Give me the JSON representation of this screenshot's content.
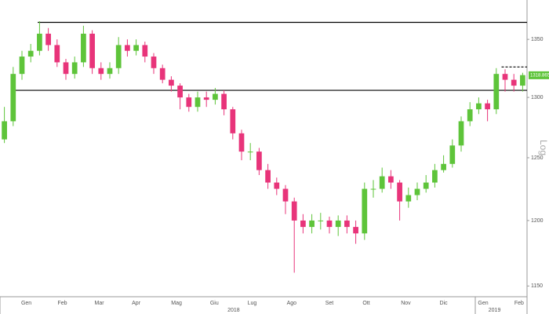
{
  "chart_data": {
    "type": "candlestick",
    "log_scale": true,
    "scale_label": "Log",
    "xlim": [
      0,
      60
    ],
    "ylim": [
      1142,
      1385
    ],
    "yticks": [
      1150,
      1200,
      1250,
      1300,
      1350
    ],
    "xticks": [
      {
        "value": 3.0,
        "label": "Gen"
      },
      {
        "value": 7.1,
        "label": "Feb"
      },
      {
        "value": 11.3,
        "label": "Mar"
      },
      {
        "value": 15.5,
        "label": "Apr"
      },
      {
        "value": 20.1,
        "label": "Mag"
      },
      {
        "value": 24.4,
        "label": "Giu"
      },
      {
        "value": 28.7,
        "label": "Lug"
      },
      {
        "value": 33.2,
        "label": "Ago"
      },
      {
        "value": 37.5,
        "label": "Set"
      },
      {
        "value": 41.7,
        "label": "Ott"
      },
      {
        "value": 46.2,
        "label": "Nov"
      },
      {
        "value": 50.5,
        "label": "Dic"
      },
      {
        "value": 55.0,
        "label": "Gen"
      },
      {
        "value": 59.1,
        "label": "Feb"
      }
    ],
    "year_labels": [
      {
        "value": 26.6,
        "label": "2018"
      },
      {
        "value": 56.3,
        "label": "2019"
      }
    ],
    "up_color": "#5ec43a",
    "down_color": "#e8347a",
    "last_price": 1318.8654,
    "hlines": [
      {
        "value": 1365,
        "x_from": 4.3,
        "dashed": false
      },
      {
        "value": 1306,
        "x_from": 1.3,
        "dashed": false
      },
      {
        "value": 1326,
        "x_from": 57.1,
        "dashed": true
      }
    ],
    "x": [
      0.5,
      1.5,
      2.5,
      3.5,
      4.5,
      5.5,
      6.5,
      7.5,
      8.5,
      9.5,
      10.5,
      11.5,
      12.5,
      13.5,
      14.5,
      15.5,
      16.5,
      17.5,
      18.5,
      19.5,
      20.5,
      21.5,
      22.5,
      23.5,
      24.5,
      25.5,
      26.5,
      27.5,
      28.5,
      29.5,
      30.5,
      31.5,
      32.5,
      33.5,
      34.5,
      35.5,
      36.5,
      37.5,
      38.5,
      39.5,
      40.5,
      41.5,
      42.5,
      43.5,
      44.5,
      45.5,
      46.5,
      47.5,
      48.5,
      49.5,
      50.5,
      51.5,
      52.5,
      53.5,
      54.5,
      55.5,
      56.5,
      57.5,
      58.5,
      59.5
    ],
    "open": [
      1265,
      1280,
      1320,
      1335,
      1340,
      1355,
      1345,
      1330,
      1320,
      1330,
      1355,
      1325,
      1320,
      1325,
      1345,
      1340,
      1345,
      1335,
      1325,
      1315,
      1310,
      1300,
      1292,
      1300,
      1298,
      1303,
      1290,
      1270,
      1255,
      1255,
      1240,
      1230,
      1225,
      1215,
      1200,
      1195,
      1200,
      1200,
      1195,
      1200,
      1195,
      1190,
      1225,
      1225,
      1235,
      1230,
      1215,
      1220,
      1225,
      1230,
      1240,
      1245,
      1260,
      1280,
      1290,
      1295,
      1290,
      1320,
      1315,
      1310
    ],
    "high": [
      1292,
      1326,
      1340,
      1346,
      1366,
      1360,
      1350,
      1333,
      1335,
      1362,
      1358,
      1330,
      1330,
      1352,
      1350,
      1350,
      1348,
      1338,
      1328,
      1318,
      1312,
      1303,
      1305,
      1305,
      1308,
      1306,
      1292,
      1273,
      1262,
      1258,
      1245,
      1234,
      1228,
      1218,
      1205,
      1205,
      1206,
      1203,
      1204,
      1204,
      1200,
      1230,
      1232,
      1242,
      1240,
      1232,
      1226,
      1230,
      1236,
      1245,
      1252,
      1265,
      1284,
      1296,
      1300,
      1298,
      1325,
      1324,
      1320,
      1321
    ],
    "low": [
      1262,
      1276,
      1315,
      1330,
      1336,
      1340,
      1326,
      1315,
      1316,
      1326,
      1320,
      1315,
      1316,
      1320,
      1335,
      1336,
      1330,
      1320,
      1312,
      1305,
      1290,
      1288,
      1288,
      1292,
      1294,
      1285,
      1265,
      1248,
      1248,
      1236,
      1225,
      1220,
      1205,
      1160,
      1190,
      1190,
      1193,
      1190,
      1188,
      1190,
      1182,
      1185,
      1218,
      1222,
      1225,
      1200,
      1210,
      1216,
      1222,
      1226,
      1238,
      1242,
      1255,
      1276,
      1286,
      1280,
      1286,
      1305,
      1305,
      1305
    ],
    "close": [
      1280,
      1320,
      1335,
      1340,
      1355,
      1345,
      1330,
      1320,
      1330,
      1355,
      1325,
      1320,
      1325,
      1345,
      1340,
      1345,
      1335,
      1325,
      1315,
      1310,
      1300,
      1292,
      1300,
      1298,
      1303,
      1290,
      1270,
      1255,
      1255,
      1240,
      1230,
      1225,
      1215,
      1200,
      1195,
      1200,
      1200,
      1195,
      1200,
      1195,
      1190,
      1225,
      1225,
      1235,
      1230,
      1215,
      1220,
      1225,
      1230,
      1240,
      1245,
      1260,
      1280,
      1290,
      1295,
      1290,
      1320,
      1315,
      1310,
      1319
    ]
  }
}
